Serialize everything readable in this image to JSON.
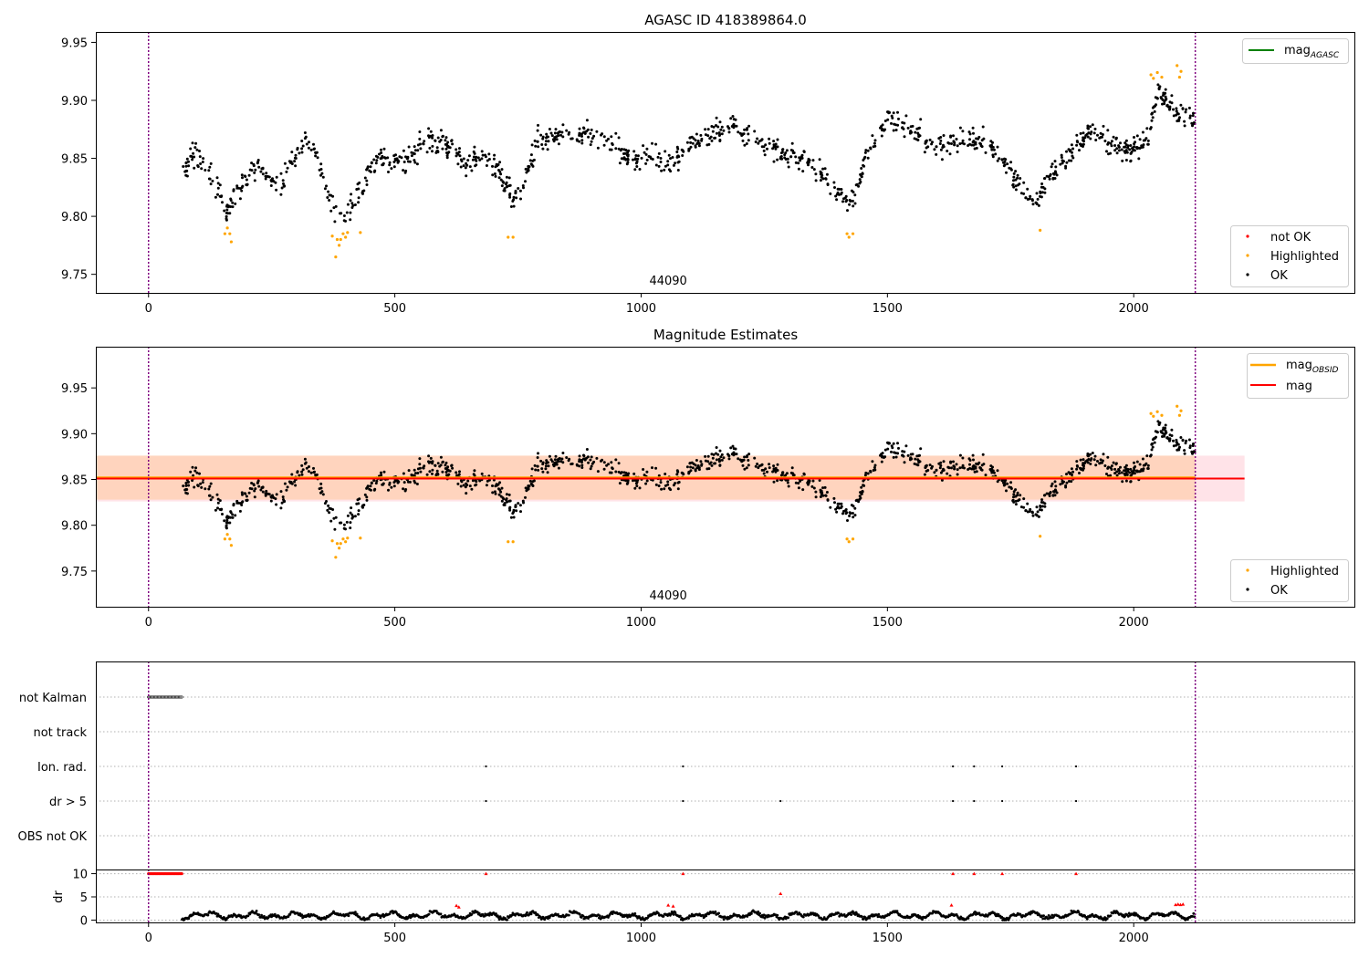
{
  "chart_data": [
    {
      "type": "scatter",
      "title": "AGASC ID 418389864.0",
      "xlim": [
        -107,
        2448
      ],
      "ylim": [
        9.734,
        9.959
      ],
      "xticks": [
        0,
        500,
        1000,
        1500,
        2000
      ],
      "yticks": [
        9.75,
        9.8,
        9.85,
        9.9,
        9.95
      ],
      "ytick_labels": [
        "9.75",
        "9.80",
        "9.85",
        "9.90",
        "9.95"
      ],
      "obsid_label": "44090",
      "obsid_label_x": 1055,
      "vertical_markers_x": [
        0,
        2125
      ],
      "legend_upper": [
        {
          "name": "mag_AGASC",
          "base": "mag",
          "sub": "AGASC",
          "color": "#008000",
          "kind": "line"
        }
      ],
      "legend_lower": [
        {
          "name": "not OK",
          "color": "#ff0000",
          "kind": "point"
        },
        {
          "name": "Highlighted",
          "color": "#ffa500",
          "kind": "point"
        },
        {
          "name": "OK",
          "color": "#000000",
          "kind": "point"
        }
      ],
      "trend": {
        "x_range": [
          70,
          2125
        ],
        "knots": [
          [
            70,
            9.84
          ],
          [
            95,
            9.855
          ],
          [
            115,
            9.84
          ],
          [
            140,
            9.825
          ],
          [
            160,
            9.802
          ],
          [
            175,
            9.818
          ],
          [
            195,
            9.833
          ],
          [
            225,
            9.845
          ],
          [
            250,
            9.828
          ],
          [
            265,
            9.822
          ],
          [
            290,
            9.848
          ],
          [
            320,
            9.868
          ],
          [
            340,
            9.855
          ],
          [
            360,
            9.822
          ],
          [
            380,
            9.8
          ],
          [
            400,
            9.797
          ],
          [
            430,
            9.822
          ],
          [
            460,
            9.848
          ],
          [
            520,
            9.846
          ],
          [
            560,
            9.865
          ],
          [
            610,
            9.862
          ],
          [
            650,
            9.843
          ],
          [
            690,
            9.85
          ],
          [
            715,
            9.838
          ],
          [
            740,
            9.815
          ],
          [
            760,
            9.825
          ],
          [
            790,
            9.865
          ],
          [
            830,
            9.87
          ],
          [
            880,
            9.872
          ],
          [
            940,
            9.862
          ],
          [
            980,
            9.848
          ],
          [
            1020,
            9.852
          ],
          [
            1060,
            9.845
          ],
          [
            1100,
            9.862
          ],
          [
            1150,
            9.872
          ],
          [
            1190,
            9.878
          ],
          [
            1230,
            9.865
          ],
          [
            1280,
            9.855
          ],
          [
            1330,
            9.85
          ],
          [
            1360,
            9.84
          ],
          [
            1400,
            9.82
          ],
          [
            1420,
            9.81
          ],
          [
            1440,
            9.825
          ],
          [
            1460,
            9.855
          ],
          [
            1500,
            9.885
          ],
          [
            1560,
            9.872
          ],
          [
            1600,
            9.86
          ],
          [
            1650,
            9.868
          ],
          [
            1700,
            9.865
          ],
          [
            1740,
            9.845
          ],
          [
            1770,
            9.825
          ],
          [
            1800,
            9.815
          ],
          [
            1830,
            9.835
          ],
          [
            1870,
            9.855
          ],
          [
            1910,
            9.875
          ],
          [
            1950,
            9.865
          ],
          [
            1990,
            9.855
          ],
          [
            2030,
            9.87
          ],
          [
            2050,
            9.91
          ],
          [
            2070,
            9.895
          ],
          [
            2100,
            9.885
          ],
          [
            2125,
            9.885
          ]
        ],
        "noise": 0.01,
        "n_points": 1250
      },
      "highlighted_points": [
        [
          155,
          9.785
        ],
        [
          160,
          9.79
        ],
        [
          165,
          9.785
        ],
        [
          168,
          9.778
        ],
        [
          373,
          9.783
        ],
        [
          380,
          9.765
        ],
        [
          383,
          9.78
        ],
        [
          387,
          9.775
        ],
        [
          390,
          9.78
        ],
        [
          395,
          9.785
        ],
        [
          400,
          9.782
        ],
        [
          404,
          9.786
        ],
        [
          430,
          9.786
        ],
        [
          730,
          9.782
        ],
        [
          740,
          9.782
        ],
        [
          1418,
          9.785
        ],
        [
          1422,
          9.782
        ],
        [
          1430,
          9.785
        ],
        [
          1810,
          9.788
        ],
        [
          2035,
          9.922
        ],
        [
          2040,
          9.919
        ],
        [
          2048,
          9.924
        ],
        [
          2057,
          9.92
        ],
        [
          2088,
          9.93
        ],
        [
          2093,
          9.92
        ],
        [
          2096,
          9.925
        ]
      ]
    },
    {
      "type": "scatter",
      "title": "Magnitude Estimates",
      "xlim": [
        -107,
        2448
      ],
      "ylim": [
        9.711,
        9.995
      ],
      "xticks": [
        0,
        500,
        1000,
        1500,
        2000
      ],
      "yticks": [
        9.75,
        9.8,
        9.85,
        9.9,
        9.95
      ],
      "ytick_labels": [
        "9.75",
        "9.80",
        "9.85",
        "9.90",
        "9.95"
      ],
      "obsid_label": "44090",
      "obsid_label_x": 1055,
      "vertical_markers_x": [
        0,
        2125
      ],
      "mag_line": {
        "value": 9.851,
        "x_range": [
          -107,
          2225
        ],
        "color": "#ff0000",
        "band": [
          9.826,
          9.876
        ],
        "band_color": "#ffc0cb"
      },
      "mag_obsid_line": {
        "value": 9.852,
        "x_range": [
          -107,
          2125
        ],
        "color": "#ffa500",
        "band": [
          9.828,
          9.876
        ],
        "band_color": "#ffc89a"
      },
      "legend_upper": [
        {
          "name": "mag_OBSID",
          "base": "mag",
          "sub": "OBSID",
          "color": "#ffa500",
          "kind": "line"
        },
        {
          "name": "mag",
          "color": "#ff0000",
          "kind": "line"
        }
      ],
      "legend_lower": [
        {
          "name": "Highlighted",
          "color": "#ffa500",
          "kind": "point"
        },
        {
          "name": "OK",
          "color": "#000000",
          "kind": "point"
        }
      ]
    },
    {
      "type": "scatter",
      "title": "",
      "xlim": [
        -107,
        2448
      ],
      "xticks": [
        0,
        500,
        1000,
        1500,
        2000
      ],
      "flag_rows": [
        "not Kalman",
        "not track",
        "Ion. rad.",
        "dr > 5",
        "OBS not OK"
      ],
      "flag_points": {
        "not Kalman": {
          "x_range": [
            0,
            68
          ]
        },
        "not track": {
          "x": []
        },
        "Ion. rad.": {
          "x": [
            685,
            1085,
            1633,
            1676,
            1733,
            1883
          ]
        },
        "dr > 5": {
          "x": [
            685,
            1085,
            1283,
            1633,
            1676,
            1733,
            1883
          ]
        },
        "OBS not OK": {
          "x": []
        }
      },
      "dr_axis": {
        "ylabel": "dr",
        "yticks": [
          0,
          5,
          10
        ],
        "ylim": [
          -0.5,
          10.7
        ]
      },
      "dr_flagged": [
        [
          625,
          3.1
        ],
        [
          630,
          2.8
        ],
        [
          685,
          10
        ],
        [
          1055,
          3.2
        ],
        [
          1065,
          3.0
        ],
        [
          1085,
          10
        ],
        [
          1283,
          5.7
        ],
        [
          1633,
          10
        ],
        [
          1630,
          3.2
        ],
        [
          1676,
          10
        ],
        [
          1733,
          10
        ],
        [
          1883,
          10
        ],
        [
          2085,
          3.3
        ],
        [
          2090,
          3.4
        ],
        [
          2095,
          3.3
        ],
        [
          2100,
          3.4
        ]
      ],
      "vertical_markers_x": [
        0,
        2125
      ]
    }
  ]
}
